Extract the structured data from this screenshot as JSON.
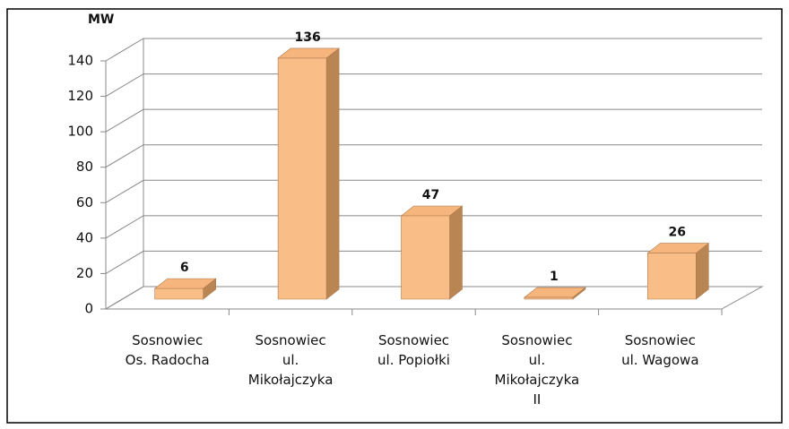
{
  "chart_data": {
    "type": "bar3d",
    "y_label": "MW",
    "categories": [
      "Sosnowiec\nOs. Radocha",
      "Sosnowiec\nul.\nMikołajczyka",
      "Sosnowiec\nul. Popiołki",
      "Sosnowiec\nul.\nMikołajczyka\nII",
      "Sosnowiec\nul. Wagowa"
    ],
    "values": [
      6,
      136,
      47,
      1,
      26
    ],
    "color": "#f9bd88",
    "ylim": [
      0,
      140
    ],
    "yticks": [
      0,
      20,
      40,
      60,
      80,
      100,
      120,
      140
    ],
    "grid": true
  }
}
